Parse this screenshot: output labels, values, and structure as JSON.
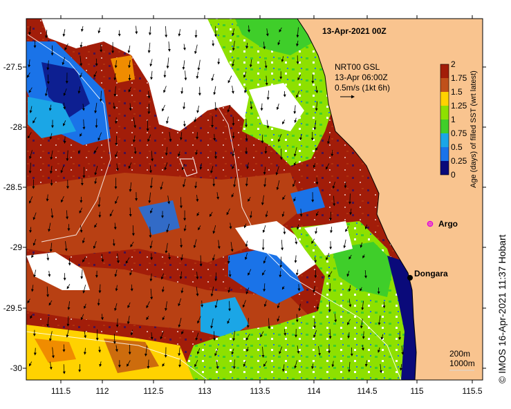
{
  "map": {
    "title": "13-Apr-2021 00Z",
    "product": "NRT00 GSL",
    "product_time": "13-Apr 06:00Z",
    "vector_scale": "0.5m/s (1kt 6h)",
    "colorbar_title": "Age (days) of filled SST (wrt latest)",
    "colorbar_ticks": [
      "2",
      "1.75",
      "1.5",
      "1.25",
      "1",
      "0.75",
      "0.5",
      "0.25",
      "0"
    ],
    "lon_ticks": [
      "111.5",
      "112",
      "112.5",
      "113",
      "113.5",
      "114",
      "114.5",
      "115",
      "115.5"
    ],
    "lat_ticks": [
      "-27.5",
      "-28",
      "-28.5",
      "-29",
      "-29.5",
      "-30"
    ],
    "places": {
      "argo": "Argo",
      "town": "Dongara"
    },
    "contours": [
      "200m",
      "1000m"
    ],
    "credit": "© IMOS 16-Apr-2021 11:37 Hobart"
  },
  "colors": {
    "land": "#f9c48f",
    "ocean_old": "#a21d09",
    "ocean_mid": "#b84013",
    "green_light": "#8ee000",
    "green": "#3fce2a",
    "blue": "#1a73e8",
    "cyan": "#1ba6e6",
    "navy": "#0a0a7a",
    "yellow": "#ffd200",
    "orange": "#f08c00",
    "argo": "#e000e0"
  }
}
